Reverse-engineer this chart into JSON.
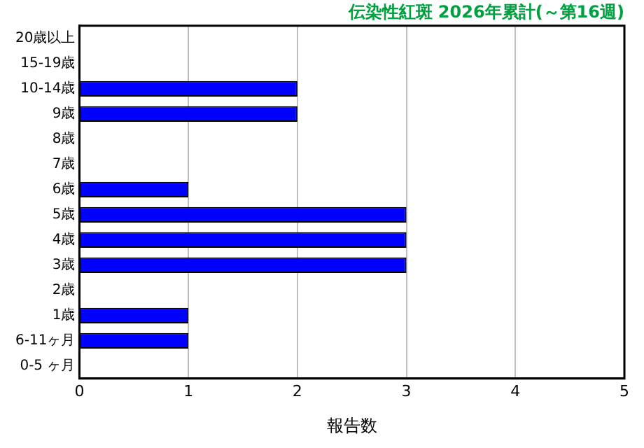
{
  "chart_data": {
    "type": "bar",
    "orientation": "horizontal",
    "title": "伝染性紅斑 2026年累計(～第16週)",
    "xlabel": "報告数",
    "categories": [
      "20歳以上",
      "15-19歳",
      "10-14歳",
      "9歳",
      "8歳",
      "7歳",
      "6歳",
      "5歳",
      "4歳",
      "3歳",
      "2歳",
      "1歳",
      "6-11ヶ月",
      "0-5 ヶ月"
    ],
    "values": [
      0,
      0,
      2,
      2,
      0,
      0,
      1,
      3,
      3,
      3,
      0,
      1,
      1,
      0
    ],
    "color": "#0000ff",
    "xlim": [
      0,
      5
    ],
    "xticks": [
      0,
      1,
      2,
      3,
      4,
      5
    ],
    "grid": "x",
    "legend": false
  }
}
